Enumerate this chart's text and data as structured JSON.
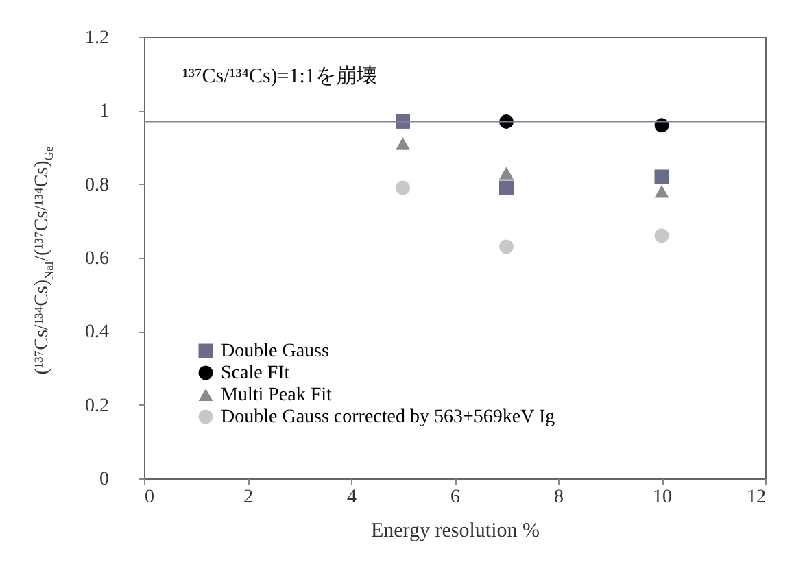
{
  "chart_data": {
    "type": "scatter",
    "xlabel": "Energy resolution %",
    "ylabel": "(¹³⁷Cs/¹³⁴Cs)$_{NaI}$/(¹³⁷Cs/¹³⁴Cs)$_{Ge}$",
    "annotations": [
      "¹³⁷Cs/¹³⁴Cs)=1:1を崩壊"
    ],
    "x": [
      5,
      7,
      10
    ],
    "series": [
      {
        "name": "Double Gauss",
        "color": "#6b6b8a",
        "marker": "square",
        "values": [
          0.97,
          0.79,
          0.82
        ]
      },
      {
        "name": "Scale FIt",
        "color": "#000000",
        "marker": "circle",
        "values": [
          null,
          0.97,
          0.96
        ]
      },
      {
        "name": "Multi Peak Fit",
        "color": "#8a8a8a",
        "marker": "triangle",
        "values": [
          0.91,
          0.83,
          0.78
        ]
      },
      {
        "name": "Double Gauss corrected by 563+569keV Ig",
        "color": "#c8c8c8",
        "marker": "circle",
        "values": [
          0.79,
          0.63,
          0.66
        ]
      }
    ],
    "ref_lines": [
      {
        "axis": "y",
        "value": 0.97,
        "color": "#8080b0"
      }
    ],
    "xlim": [
      0,
      12
    ],
    "xticks": [
      0,
      2,
      4,
      6,
      8,
      10,
      12
    ],
    "ylim": [
      0,
      1.2
    ],
    "yticks": [
      0,
      0.2,
      0.4,
      0.6,
      0.8,
      1,
      1.2
    ],
    "grid": false,
    "legend": "bottom left"
  }
}
